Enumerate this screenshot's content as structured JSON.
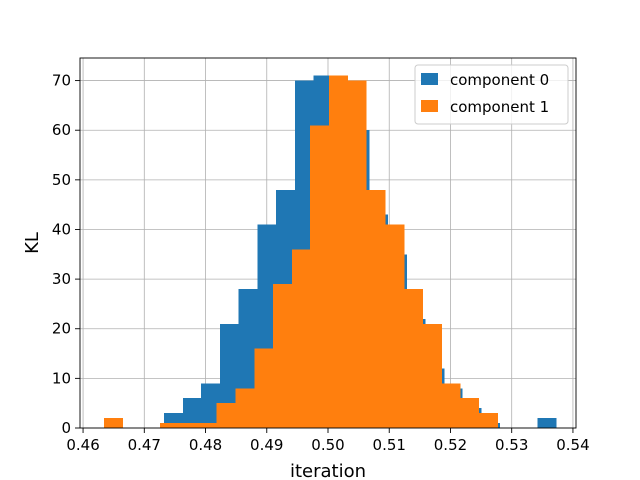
{
  "chart_data": {
    "type": "bar",
    "title": "",
    "xlabel": "iteration",
    "ylabel": "KL",
    "xlim": [
      0.4595,
      0.5405
    ],
    "ylim": [
      0,
      74.55
    ],
    "grid": true,
    "legend_position": "top-right",
    "x_ticks": [
      0.46,
      0.47,
      0.48,
      0.49,
      0.5,
      0.51,
      0.52,
      0.53,
      0.54
    ],
    "x_tick_labels": [
      "0.46",
      "0.47",
      "0.48",
      "0.49",
      "0.50",
      "0.51",
      "0.52",
      "0.53",
      "0.54"
    ],
    "y_ticks": [
      0,
      10,
      20,
      30,
      40,
      50,
      60,
      70
    ],
    "y_tick_labels": [
      "0",
      "10",
      "20",
      "30",
      "40",
      "50",
      "60",
      "70"
    ],
    "series": [
      {
        "name": "component 0",
        "color": "#1f77b4",
        "bin_edges": [
          0.4732,
          0.4763,
          0.4793,
          0.4824,
          0.4854,
          0.4885,
          0.4915,
          0.4946,
          0.4976,
          0.5007,
          0.5037,
          0.5068,
          0.5098,
          0.5129,
          0.5159,
          0.519,
          0.522,
          0.5251,
          0.5281,
          0.5312,
          0.5342,
          0.5373
        ],
        "counts": [
          3,
          6,
          9,
          21,
          28,
          41,
          48,
          70,
          71,
          68,
          60,
          43,
          35,
          22,
          12,
          8,
          4,
          1,
          0,
          0,
          2
        ]
      },
      {
        "name": "component 1",
        "color": "#ff7f0e",
        "bin_edges": [
          0.4634,
          0.4665,
          0.4696,
          0.4726,
          0.4757,
          0.4788,
          0.4818,
          0.4849,
          0.488,
          0.491,
          0.4941,
          0.4971,
          0.5002,
          0.5033,
          0.5063,
          0.5094,
          0.5125,
          0.5155,
          0.5186,
          0.5216,
          0.5247,
          0.5278
        ],
        "counts": [
          2,
          0,
          0,
          1,
          1,
          1,
          5,
          8,
          16,
          29,
          36,
          61,
          71,
          70,
          48,
          41,
          28,
          21,
          9,
          6,
          3
        ]
      }
    ]
  }
}
